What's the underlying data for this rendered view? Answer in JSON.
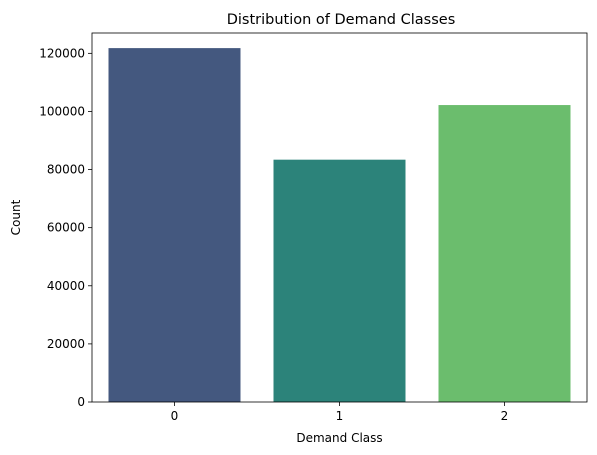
{
  "chart_data": {
    "type": "bar",
    "title": "Distribution of Demand Classes",
    "xlabel": "Demand Class",
    "ylabel": "Count",
    "categories": [
      "0",
      "1",
      "2"
    ],
    "values": [
      121800,
      83400,
      102200
    ],
    "colors": [
      "#44587F",
      "#2C837A",
      "#6BBD6D"
    ],
    "ylim": [
      0,
      127000
    ],
    "yticks": [
      0,
      20000,
      40000,
      60000,
      80000,
      100000,
      120000
    ],
    "grid": false,
    "legend": "none"
  }
}
